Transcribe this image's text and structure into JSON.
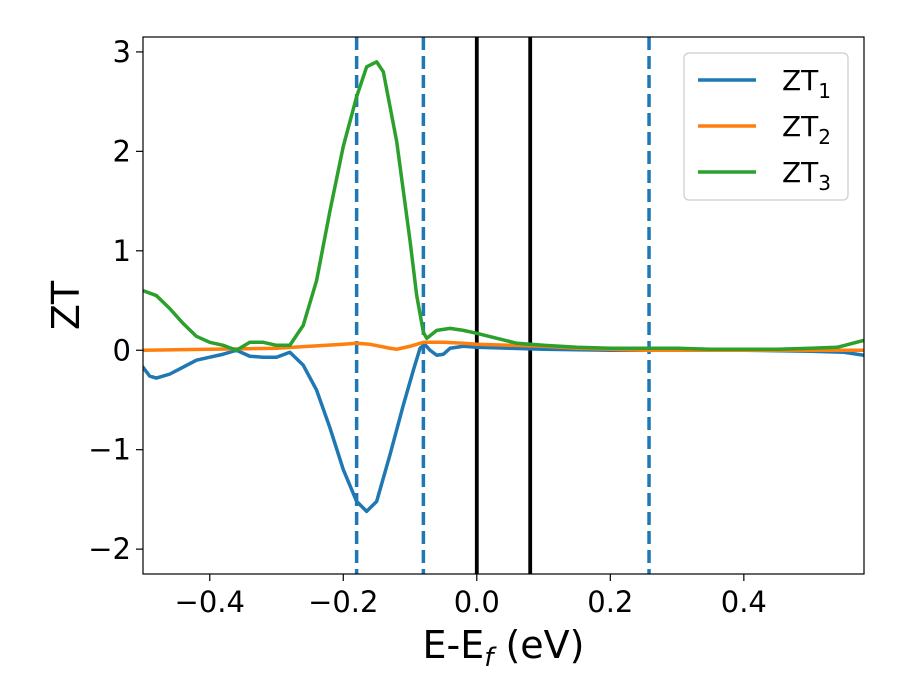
{
  "chart_data": {
    "type": "line",
    "xlabel": "E-E",
    "xlabel_sub": "f",
    "xlabel_unit": " (eV)",
    "ylabel": "ZT",
    "xlim": [
      -0.5,
      0.58
    ],
    "ylim": [
      -2.25,
      3.15
    ],
    "xticks": [
      -0.4,
      -0.2,
      0.0,
      0.2,
      0.4
    ],
    "xtick_labels": [
      "−0.4",
      "−0.2",
      "0.0",
      "0.2",
      "0.4"
    ],
    "yticks": [
      -2,
      -1,
      0,
      1,
      2,
      3
    ],
    "ytick_labels": [
      "−2",
      "−1",
      "0",
      "1",
      "2",
      "3"
    ],
    "legend_position": "top-right",
    "grid": false,
    "vlines": [
      {
        "x": -0.18,
        "style": "dashed",
        "color": "#1f77b4"
      },
      {
        "x": -0.08,
        "style": "dashed",
        "color": "#1f77b4"
      },
      {
        "x": 0.0,
        "style": "solid",
        "color": "#000000"
      },
      {
        "x": 0.08,
        "style": "solid",
        "color": "#000000"
      },
      {
        "x": 0.258,
        "style": "dashed",
        "color": "#1f77b4"
      }
    ],
    "series": [
      {
        "name": "ZT",
        "sub": "1",
        "color": "#1f77b4",
        "points": [
          [
            -0.5,
            -0.17
          ],
          [
            -0.49,
            -0.26
          ],
          [
            -0.48,
            -0.28
          ],
          [
            -0.46,
            -0.24
          ],
          [
            -0.44,
            -0.17
          ],
          [
            -0.42,
            -0.1
          ],
          [
            -0.4,
            -0.07
          ],
          [
            -0.38,
            -0.04
          ],
          [
            -0.36,
            0.0
          ],
          [
            -0.34,
            -0.06
          ],
          [
            -0.32,
            -0.07
          ],
          [
            -0.3,
            -0.07
          ],
          [
            -0.28,
            -0.02
          ],
          [
            -0.26,
            -0.15
          ],
          [
            -0.24,
            -0.4
          ],
          [
            -0.22,
            -0.78
          ],
          [
            -0.2,
            -1.2
          ],
          [
            -0.18,
            -1.52
          ],
          [
            -0.165,
            -1.62
          ],
          [
            -0.15,
            -1.52
          ],
          [
            -0.13,
            -1.05
          ],
          [
            -0.11,
            -0.55
          ],
          [
            -0.095,
            -0.2
          ],
          [
            -0.085,
            0.02
          ],
          [
            -0.078,
            0.06
          ],
          [
            -0.07,
            0.0
          ],
          [
            -0.06,
            -0.05
          ],
          [
            -0.05,
            -0.04
          ],
          [
            -0.04,
            0.02
          ],
          [
            -0.02,
            0.04
          ],
          [
            0.0,
            0.03
          ],
          [
            0.05,
            0.02
          ],
          [
            0.1,
            0.01
          ],
          [
            0.2,
            0.0
          ],
          [
            0.3,
            0.0
          ],
          [
            0.4,
            0.0
          ],
          [
            0.5,
            -0.01
          ],
          [
            0.55,
            -0.02
          ],
          [
            0.58,
            -0.05
          ]
        ]
      },
      {
        "name": "ZT",
        "sub": "2",
        "color": "#ff7f0e",
        "points": [
          [
            -0.5,
            0.0
          ],
          [
            -0.4,
            0.01
          ],
          [
            -0.3,
            0.02
          ],
          [
            -0.25,
            0.04
          ],
          [
            -0.2,
            0.06
          ],
          [
            -0.18,
            0.07
          ],
          [
            -0.16,
            0.06
          ],
          [
            -0.13,
            0.02
          ],
          [
            -0.12,
            0.01
          ],
          [
            -0.1,
            0.04
          ],
          [
            -0.08,
            0.08
          ],
          [
            -0.05,
            0.08
          ],
          [
            -0.02,
            0.07
          ],
          [
            0.0,
            0.06
          ],
          [
            0.05,
            0.05
          ],
          [
            0.1,
            0.04
          ],
          [
            0.15,
            0.02
          ],
          [
            0.2,
            0.01
          ],
          [
            0.25,
            0.0
          ],
          [
            0.3,
            0.0
          ],
          [
            0.4,
            0.0
          ],
          [
            0.5,
            0.0
          ],
          [
            0.58,
            0.0
          ]
        ]
      },
      {
        "name": "ZT",
        "sub": "3",
        "color": "#2ca02c",
        "points": [
          [
            -0.5,
            0.6
          ],
          [
            -0.48,
            0.55
          ],
          [
            -0.46,
            0.42
          ],
          [
            -0.44,
            0.27
          ],
          [
            -0.42,
            0.14
          ],
          [
            -0.4,
            0.08
          ],
          [
            -0.38,
            0.05
          ],
          [
            -0.36,
            0.0
          ],
          [
            -0.34,
            0.08
          ],
          [
            -0.32,
            0.08
          ],
          [
            -0.3,
            0.05
          ],
          [
            -0.28,
            0.05
          ],
          [
            -0.26,
            0.25
          ],
          [
            -0.24,
            0.7
          ],
          [
            -0.22,
            1.4
          ],
          [
            -0.2,
            2.05
          ],
          [
            -0.18,
            2.55
          ],
          [
            -0.165,
            2.85
          ],
          [
            -0.15,
            2.9
          ],
          [
            -0.14,
            2.8
          ],
          [
            -0.12,
            2.1
          ],
          [
            -0.1,
            1.1
          ],
          [
            -0.09,
            0.55
          ],
          [
            -0.08,
            0.18
          ],
          [
            -0.075,
            0.12
          ],
          [
            -0.06,
            0.2
          ],
          [
            -0.04,
            0.22
          ],
          [
            -0.02,
            0.2
          ],
          [
            0.0,
            0.17
          ],
          [
            0.03,
            0.12
          ],
          [
            0.06,
            0.07
          ],
          [
            0.1,
            0.05
          ],
          [
            0.15,
            0.03
          ],
          [
            0.2,
            0.02
          ],
          [
            0.25,
            0.02
          ],
          [
            0.3,
            0.02
          ],
          [
            0.35,
            0.01
          ],
          [
            0.4,
            0.01
          ],
          [
            0.45,
            0.01
          ],
          [
            0.5,
            0.02
          ],
          [
            0.54,
            0.03
          ],
          [
            0.58,
            0.1
          ]
        ]
      }
    ]
  }
}
